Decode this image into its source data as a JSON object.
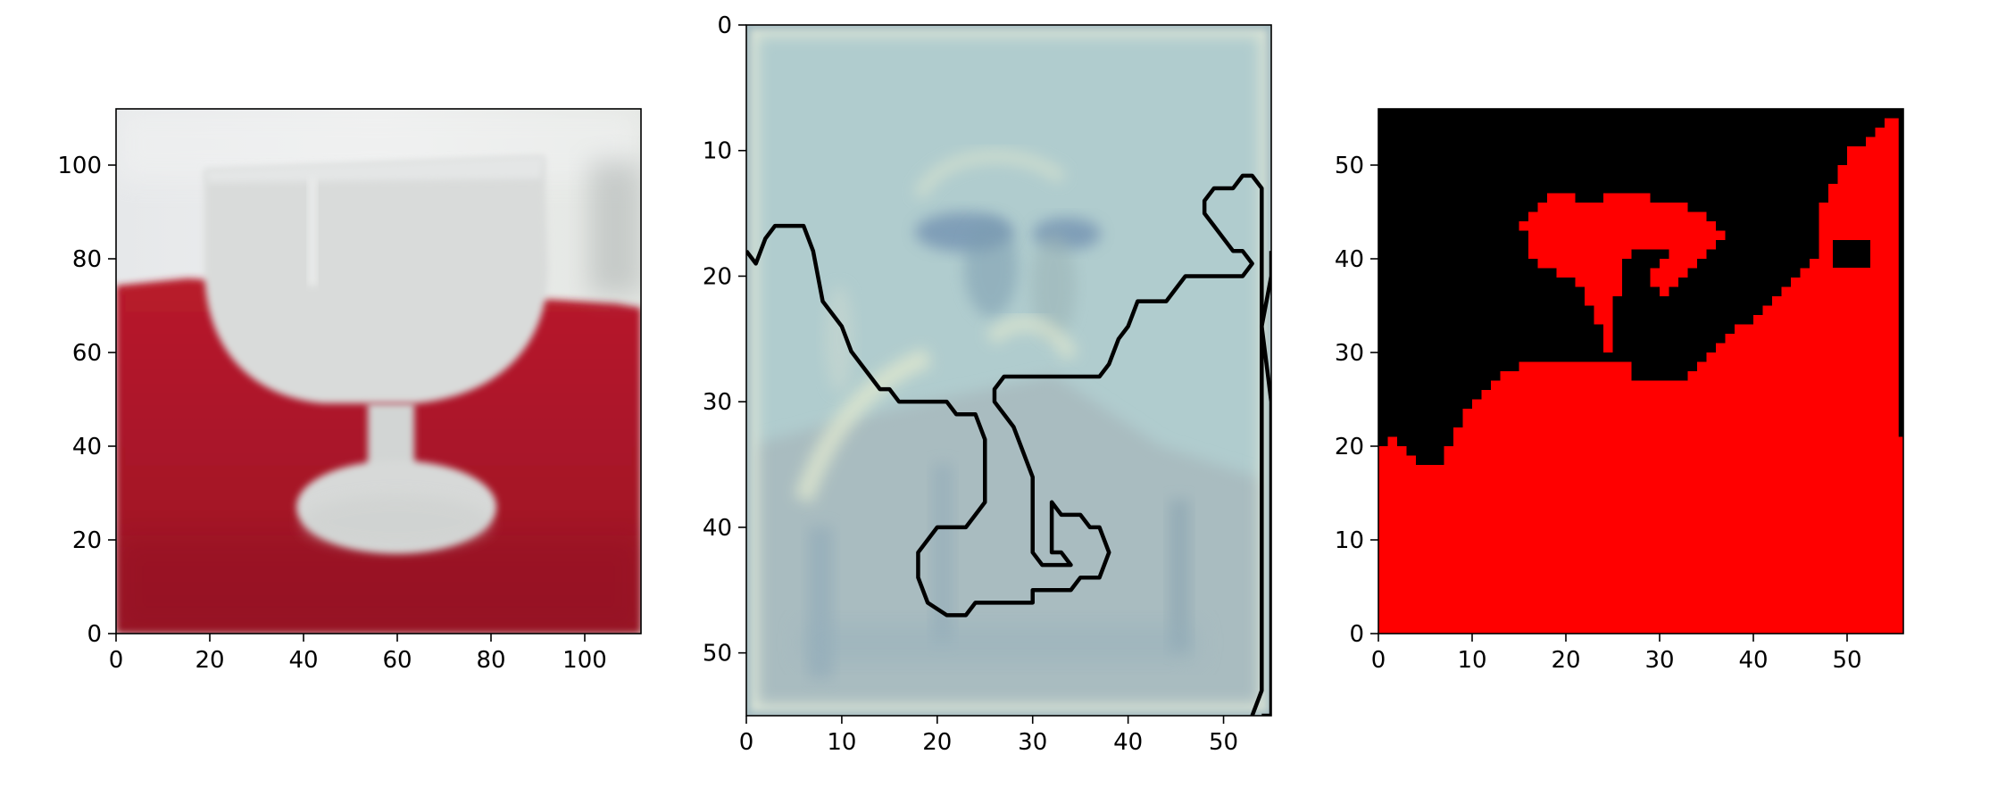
{
  "figure": {
    "panel_count": 3
  },
  "chart_data": [
    {
      "type": "heatmap",
      "panel": "photo",
      "description_of_content": "",
      "colors": {
        "background": "#e9ecec",
        "cloth": "#b1172a",
        "glass": "#dadcdb"
      },
      "xlim": [
        0,
        112
      ],
      "ylim": [
        112,
        0
      ],
      "x_ticks": [
        0,
        20,
        40,
        60,
        80,
        100
      ],
      "y_ticks": [
        0,
        20,
        40,
        60,
        80,
        100
      ],
      "x_tick_labels": [
        "0",
        "20",
        "40",
        "60",
        "80",
        "100"
      ],
      "y_tick_labels": [
        "0",
        "20",
        "40",
        "60",
        "80",
        "100"
      ],
      "xlabel": "",
      "ylabel": ""
    },
    {
      "type": "contour",
      "panel": "contour",
      "colors": {
        "base": "#b2cdcf",
        "low": "#a7b9bf",
        "line": "#000000"
      },
      "xlim": [
        0,
        55
      ],
      "ylim": [
        0,
        55
      ],
      "x_ticks": [
        0,
        10,
        20,
        30,
        40,
        50
      ],
      "y_ticks": [
        0,
        10,
        20,
        30,
        40,
        50
      ],
      "x_tick_labels": [
        "0",
        "10",
        "20",
        "30",
        "40",
        "50"
      ],
      "y_tick_labels": [
        "0",
        "10",
        "20",
        "30",
        "40",
        "50"
      ],
      "boundary_path": [
        [
          0,
          18
        ],
        [
          1,
          19
        ],
        [
          2,
          17
        ],
        [
          3,
          16
        ],
        [
          6,
          16
        ],
        [
          7,
          18
        ],
        [
          8,
          22
        ],
        [
          10,
          24
        ],
        [
          11,
          26
        ],
        [
          13,
          28
        ],
        [
          14,
          29
        ],
        [
          15,
          29
        ],
        [
          16,
          30
        ],
        [
          21,
          30
        ],
        [
          22,
          31
        ],
        [
          24,
          31
        ],
        [
          25,
          33
        ],
        [
          25,
          38
        ],
        [
          24,
          39
        ],
        [
          23,
          40
        ],
        [
          20,
          40
        ],
        [
          18,
          42
        ],
        [
          18,
          44
        ],
        [
          19,
          46
        ],
        [
          21,
          47
        ],
        [
          23,
          47
        ],
        [
          24,
          46
        ],
        [
          30,
          46
        ],
        [
          30,
          45
        ],
        [
          34,
          45
        ],
        [
          35,
          44
        ],
        [
          37,
          44
        ],
        [
          38,
          42
        ],
        [
          37,
          40
        ],
        [
          36,
          40
        ],
        [
          35,
          39
        ],
        [
          33,
          39
        ],
        [
          32,
          38
        ],
        [
          32,
          42
        ],
        [
          33,
          42
        ],
        [
          34,
          43
        ],
        [
          31,
          43
        ],
        [
          30,
          42
        ],
        [
          30,
          36
        ],
        [
          29,
          34
        ],
        [
          28,
          32
        ],
        [
          27,
          31
        ],
        [
          26,
          30
        ],
        [
          26,
          29
        ],
        [
          27,
          28
        ],
        [
          37,
          28
        ],
        [
          38,
          27
        ],
        [
          39,
          25
        ],
        [
          40,
          24
        ],
        [
          41,
          22
        ],
        [
          44,
          22
        ],
        [
          45,
          21
        ],
        [
          46,
          20
        ],
        [
          52,
          20
        ],
        [
          53,
          19
        ],
        [
          52,
          18
        ],
        [
          51,
          18
        ],
        [
          49,
          16
        ],
        [
          48,
          15
        ],
        [
          48,
          14
        ],
        [
          49,
          13
        ],
        [
          51,
          13
        ],
        [
          52,
          12
        ],
        [
          53,
          12
        ],
        [
          54,
          13
        ],
        [
          54,
          53
        ],
        [
          53,
          55
        ]
      ],
      "boundary_path_2": [
        [
          54,
          55
        ],
        [
          55,
          55
        ],
        [
          55,
          52
        ],
        [
          55,
          30
        ],
        [
          54,
          24
        ],
        [
          55,
          20
        ],
        [
          55,
          18
        ]
      ],
      "xlabel": "",
      "ylabel": ""
    },
    {
      "type": "heatmap",
      "panel": "mask",
      "colors": {
        "foreground": "#ff0000",
        "background": "#000000"
      },
      "xlim": [
        0,
        56
      ],
      "ylim": [
        56,
        0
      ],
      "x_ticks": [
        0,
        10,
        20,
        30,
        40,
        50
      ],
      "y_ticks": [
        0,
        10,
        20,
        30,
        40,
        50
      ],
      "x_tick_labels": [
        "0",
        "10",
        "20",
        "30",
        "40",
        "50"
      ],
      "y_tick_labels": [
        "0",
        "10",
        "20",
        "30",
        "40",
        "50"
      ],
      "mask_polygon": [
        [
          0,
          0
        ],
        [
          56,
          0
        ],
        [
          56,
          21
        ],
        [
          55.5,
          21
        ],
        [
          55.5,
          55
        ],
        [
          54,
          55
        ],
        [
          54,
          54
        ],
        [
          53,
          54
        ],
        [
          53,
          53
        ],
        [
          52,
          53
        ],
        [
          52,
          52
        ],
        [
          50,
          52
        ],
        [
          50,
          50
        ],
        [
          49,
          50
        ],
        [
          49,
          48
        ],
        [
          48,
          48
        ],
        [
          48,
          46
        ],
        [
          47,
          46
        ],
        [
          47,
          40
        ],
        [
          46,
          40
        ],
        [
          46,
          39
        ],
        [
          45,
          39
        ],
        [
          45,
          38
        ],
        [
          44,
          38
        ],
        [
          44,
          37
        ],
        [
          43,
          37
        ],
        [
          43,
          36
        ],
        [
          42,
          36
        ],
        [
          42,
          35
        ],
        [
          41,
          35
        ],
        [
          41,
          34
        ],
        [
          40,
          34
        ],
        [
          40,
          33
        ],
        [
          38,
          33
        ],
        [
          38,
          32
        ],
        [
          37,
          32
        ],
        [
          37,
          31
        ],
        [
          36,
          31
        ],
        [
          36,
          30
        ],
        [
          35,
          30
        ],
        [
          35,
          29
        ],
        [
          34,
          29
        ],
        [
          34,
          28
        ],
        [
          33,
          28
        ],
        [
          33,
          27
        ],
        [
          27,
          27
        ],
        [
          27,
          29
        ],
        [
          25,
          29
        ],
        [
          25,
          36
        ],
        [
          26,
          36
        ],
        [
          26,
          40
        ],
        [
          27,
          40
        ],
        [
          27,
          41
        ],
        [
          31,
          41
        ],
        [
          31,
          40
        ],
        [
          30,
          40
        ],
        [
          30,
          39
        ],
        [
          29,
          39
        ],
        [
          29,
          37
        ],
        [
          30,
          37
        ],
        [
          30,
          36
        ],
        [
          31,
          36
        ],
        [
          31,
          37
        ],
        [
          32,
          37
        ],
        [
          32,
          38
        ],
        [
          33,
          38
        ],
        [
          33,
          39
        ],
        [
          34,
          39
        ],
        [
          34,
          40
        ],
        [
          35,
          40
        ],
        [
          35,
          41
        ],
        [
          36,
          41
        ],
        [
          36,
          42
        ],
        [
          37,
          42
        ],
        [
          37,
          43
        ],
        [
          36,
          43
        ],
        [
          36,
          44
        ],
        [
          35,
          44
        ],
        [
          35,
          45
        ],
        [
          33,
          45
        ],
        [
          33,
          46
        ],
        [
          29,
          46
        ],
        [
          29,
          47
        ],
        [
          24,
          47
        ],
        [
          24,
          46
        ],
        [
          21,
          46
        ],
        [
          21,
          47
        ],
        [
          18,
          47
        ],
        [
          18,
          46
        ],
        [
          17,
          46
        ],
        [
          17,
          45
        ],
        [
          16,
          45
        ],
        [
          16,
          44
        ],
        [
          15,
          44
        ],
        [
          15,
          43
        ],
        [
          16,
          43
        ],
        [
          16,
          40
        ],
        [
          17,
          40
        ],
        [
          17,
          39
        ],
        [
          19,
          39
        ],
        [
          19,
          38
        ],
        [
          21,
          38
        ],
        [
          21,
          37
        ],
        [
          22,
          37
        ],
        [
          22,
          35
        ],
        [
          23,
          35
        ],
        [
          23,
          33
        ],
        [
          24,
          33
        ],
        [
          24,
          30
        ],
        [
          25,
          30
        ],
        [
          25,
          29
        ],
        [
          15,
          29
        ],
        [
          15,
          28
        ],
        [
          13,
          28
        ],
        [
          13,
          27
        ],
        [
          12,
          27
        ],
        [
          12,
          26
        ],
        [
          11,
          26
        ],
        [
          11,
          25
        ],
        [
          10,
          25
        ],
        [
          10,
          24
        ],
        [
          9,
          24
        ],
        [
          9,
          22
        ],
        [
          8,
          22
        ],
        [
          8,
          20
        ],
        [
          7,
          20
        ],
        [
          7,
          18
        ],
        [
          4,
          18
        ],
        [
          4,
          19
        ],
        [
          3,
          19
        ],
        [
          3,
          20
        ],
        [
          2,
          20
        ],
        [
          2,
          21
        ],
        [
          1,
          21
        ],
        [
          1,
          20
        ],
        [
          0,
          20
        ],
        [
          0,
          0
        ]
      ],
      "xlabel": "",
      "ylabel": ""
    }
  ]
}
